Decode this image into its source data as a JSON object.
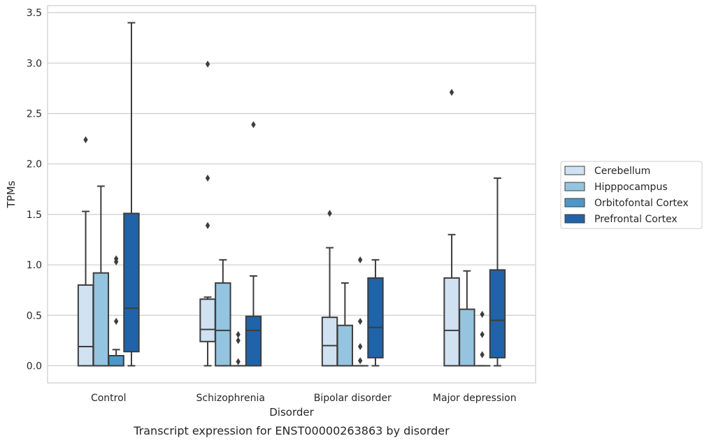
{
  "chart_data": {
    "type": "boxplot",
    "xlabel": "Disorder",
    "ylabel": "TPMs",
    "caption": "Transcript expression for ENST00000263863 by disorder",
    "ylim": [
      -0.17,
      3.57
    ],
    "yticks": [
      "0.0",
      "0.5",
      "1.0",
      "1.5",
      "2.0",
      "2.5",
      "3.0",
      "3.5"
    ],
    "ytick_values": [
      0,
      0.5,
      1.0,
      1.5,
      2.0,
      2.5,
      3.0,
      3.5
    ],
    "grid": "horizontal",
    "legend_position": "right",
    "categories": [
      "Control",
      "Schizophrenia",
      "Bipolar disorder",
      "Major depression"
    ],
    "series": [
      {
        "name": "Cerebellum",
        "color": "#d0e1f2",
        "boxes": [
          {
            "whislo": 0.0,
            "q1": 0.0,
            "med": 0.19,
            "q3": 0.8,
            "whishi": 1.53,
            "fliers": [
              2.24
            ]
          },
          {
            "whislo": 0.0,
            "q1": 0.24,
            "med": 0.36,
            "q3": 0.66,
            "whishi": 0.68,
            "fliers": [
              1.39,
              1.86,
              2.99
            ]
          },
          {
            "whislo": 0.0,
            "q1": 0.0,
            "med": 0.2,
            "q3": 0.48,
            "whishi": 1.17,
            "fliers": [
              1.51
            ]
          },
          {
            "whislo": 0.0,
            "q1": 0.0,
            "med": 0.35,
            "q3": 0.87,
            "whishi": 1.3,
            "fliers": [
              2.71
            ]
          }
        ]
      },
      {
        "name": "Hipppocampus",
        "color": "#94c4df",
        "boxes": [
          {
            "whislo": 0.0,
            "q1": 0.0,
            "med": 0.0,
            "q3": 0.92,
            "whishi": 1.78,
            "fliers": []
          },
          {
            "whislo": 0.0,
            "q1": 0.0,
            "med": 0.35,
            "q3": 0.82,
            "whishi": 1.05,
            "fliers": []
          },
          {
            "whislo": 0.0,
            "q1": 0.0,
            "med": 0.0,
            "q3": 0.4,
            "whishi": 0.82,
            "fliers": []
          },
          {
            "whislo": 0.0,
            "q1": 0.0,
            "med": 0.0,
            "q3": 0.56,
            "whishi": 0.94,
            "fliers": []
          }
        ]
      },
      {
        "name": "Orbitofontal Cortex",
        "color": "#4a98c9",
        "boxes": [
          {
            "whislo": 0.0,
            "q1": 0.0,
            "med": 0.0,
            "q3": 0.1,
            "whishi": 0.16,
            "fliers": [
              0.44,
              1.03,
              1.06
            ]
          },
          {
            "whislo": 0.0,
            "q1": 0.0,
            "med": 0.0,
            "q3": 0.0,
            "whishi": 0.0,
            "fliers": [
              0.04,
              0.25,
              0.31
            ]
          },
          {
            "whislo": 0.0,
            "q1": 0.0,
            "med": 0.0,
            "q3": 0.0,
            "whishi": 0.0,
            "fliers": [
              0.05,
              0.19,
              0.44,
              1.05
            ]
          },
          {
            "whislo": 0.0,
            "q1": 0.0,
            "med": 0.0,
            "q3": 0.0,
            "whishi": 0.0,
            "fliers": [
              0.11,
              0.31,
              0.51
            ]
          }
        ]
      },
      {
        "name": "Prefrontal Cortex",
        "color": "#2163a8",
        "boxes": [
          {
            "whislo": 0.0,
            "q1": 0.14,
            "med": 0.57,
            "q3": 1.51,
            "whishi": 3.4,
            "fliers": []
          },
          {
            "whislo": 0.0,
            "q1": 0.0,
            "med": 0.35,
            "q3": 0.49,
            "whishi": 0.89,
            "fliers": [
              2.39
            ]
          },
          {
            "whislo": 0.0,
            "q1": 0.08,
            "med": 0.38,
            "q3": 0.87,
            "whishi": 1.05,
            "fliers": []
          },
          {
            "whislo": 0.0,
            "q1": 0.08,
            "med": 0.45,
            "q3": 0.95,
            "whishi": 1.86,
            "fliers": []
          }
        ]
      }
    ]
  }
}
